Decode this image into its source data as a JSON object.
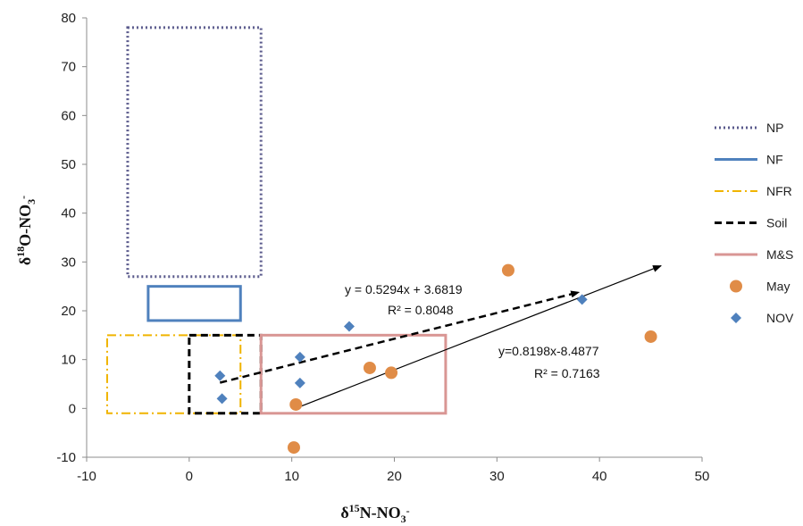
{
  "chart_data": {
    "type": "scatter",
    "xlabel": {
      "base": "δ",
      "sup": "15",
      "mid": "N-NO",
      "sub": "3",
      "tail": "-"
    },
    "ylabel": {
      "base": "δ",
      "sup": "18",
      "mid": "O-NO",
      "sub": "3",
      "tail": "-"
    },
    "xlim": [
      -10,
      50
    ],
    "ylim": [
      -10,
      80
    ],
    "xticks": [
      -10,
      0,
      10,
      20,
      30,
      40,
      50
    ],
    "yticks": [
      -10,
      0,
      10,
      20,
      30,
      40,
      50,
      60,
      70,
      80
    ],
    "grid": false,
    "legend_position": "right",
    "source_boxes": [
      {
        "name": "NP",
        "style": "dotted",
        "color": "#5a5a8c",
        "x": [
          -6,
          7
        ],
        "y": [
          27,
          78
        ]
      },
      {
        "name": "NF",
        "style": "solid",
        "color": "#4f81bd",
        "x": [
          -4,
          5
        ],
        "y": [
          18,
          25
        ]
      },
      {
        "name": "NFR",
        "style": "dashdot",
        "color": "#f0b400",
        "x": [
          -8,
          5
        ],
        "y": [
          -1,
          15
        ]
      },
      {
        "name": "Soil",
        "style": "dashed",
        "color": "#000000",
        "x": [
          0,
          7
        ],
        "y": [
          -1,
          15
        ]
      },
      {
        "name": "M&S",
        "style": "solid",
        "color": "#d99694",
        "x": [
          7,
          25
        ],
        "y": [
          -1,
          15
        ]
      }
    ],
    "series": [
      {
        "name": "May",
        "marker": "circle",
        "color": "#e08c47",
        "x": [
          10.2,
          10.4,
          17.6,
          19.7,
          31.1,
          45.0
        ],
        "y": [
          -8.0,
          0.8,
          8.3,
          7.3,
          28.3,
          14.7
        ]
      },
      {
        "name": "NOV",
        "marker": "diamond",
        "color": "#4f81bd",
        "x": [
          3.0,
          3.2,
          10.8,
          10.8,
          15.6,
          38.3
        ],
        "y": [
          6.7,
          2.0,
          10.5,
          5.2,
          16.8,
          22.3
        ]
      }
    ],
    "trendlines": [
      {
        "series": "NOV",
        "style": "dashed",
        "slope": 0.5294,
        "intercept": 3.6819,
        "x_range": [
          3,
          38
        ],
        "equation": "y = 0.5294x + 3.6819",
        "r2": "R² = 0.8048"
      },
      {
        "series": "May",
        "style": "solid",
        "slope": 0.8198,
        "intercept": -8.4877,
        "x_range": [
          10.5,
          46
        ],
        "equation": "y=0.8198x-8.4877",
        "r2": "R² = 0.7163"
      }
    ]
  }
}
